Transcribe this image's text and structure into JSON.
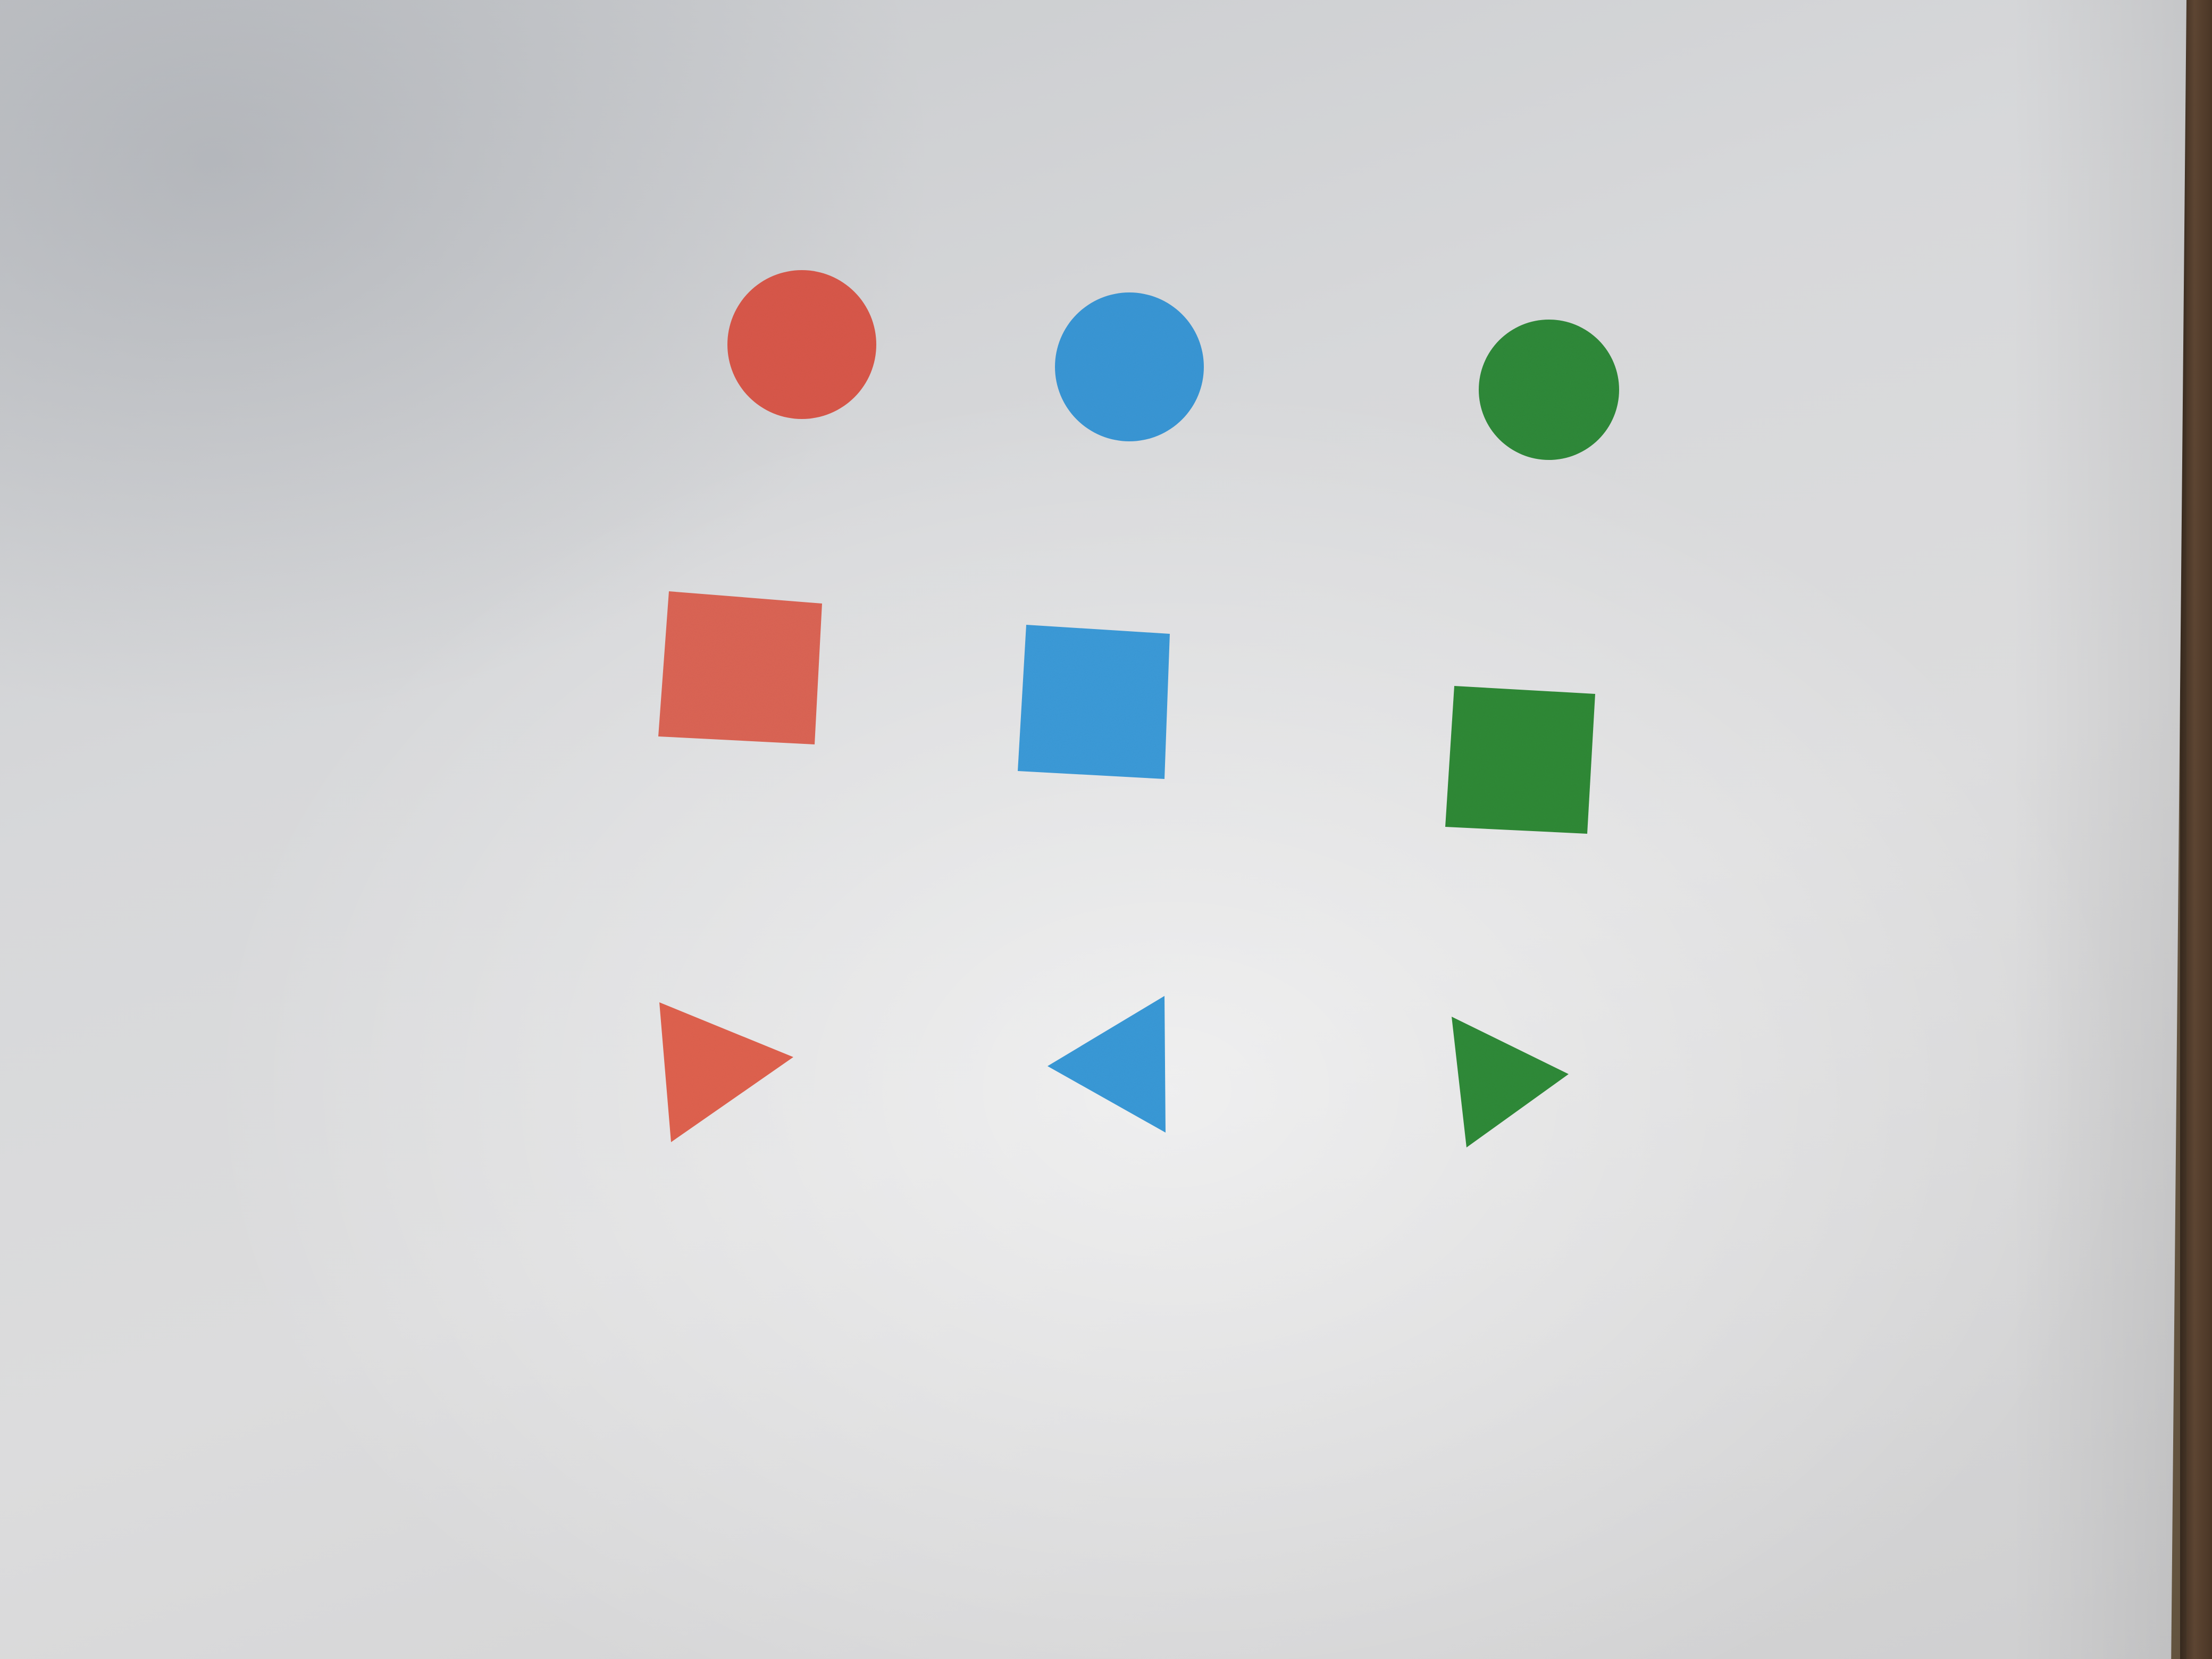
{
  "scene": {
    "description_items": [
      {
        "id": "circle-red",
        "shape": "circle",
        "color": "#d9584a"
      },
      {
        "id": "circle-blue",
        "shape": "circle",
        "color": "#3a97d6"
      },
      {
        "id": "circle-green",
        "shape": "circle",
        "color": "#2e8a3a"
      },
      {
        "id": "square-red",
        "shape": "square",
        "color": "#dc6555"
      },
      {
        "id": "square-blue",
        "shape": "square",
        "color": "#3b9bd9"
      },
      {
        "id": "square-green",
        "shape": "square",
        "color": "#2f8a37"
      },
      {
        "id": "triangle-red",
        "shape": "triangle",
        "color": "#e0624f"
      },
      {
        "id": "triangle-blue",
        "shape": "triangle",
        "color": "#3a9ad8"
      },
      {
        "id": "triangle-green",
        "shape": "triangle",
        "color": "#2f8b38"
      }
    ],
    "colors": {
      "paper": "#d8d8da",
      "table": "#4a3626"
    }
  }
}
